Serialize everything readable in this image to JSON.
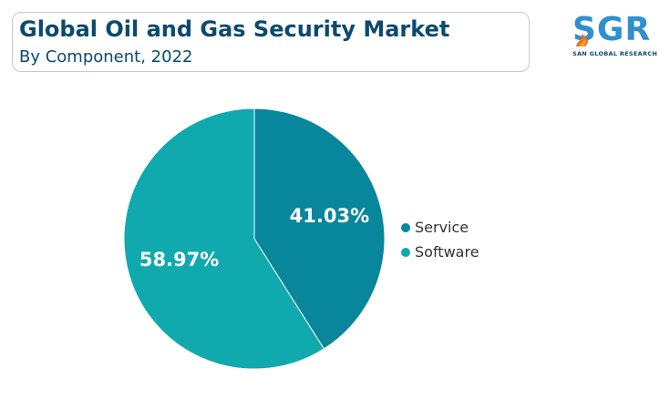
{
  "title": "Global Oil and Gas Security Market",
  "subtitle": "By Component, 2022",
  "logo": {
    "word": "SGR",
    "tagline": "SAN GLOBAL RESEARCH"
  },
  "chart_data": {
    "type": "pie",
    "slices": [
      {
        "label": "Service",
        "value": 41.03,
        "display": "41.03%",
        "color": "#08869c"
      },
      {
        "label": "Software",
        "value": 58.97,
        "display": "58.97%",
        "color": "#10a9ad"
      }
    ],
    "start_angle_deg": 0,
    "direction": "clockwise",
    "legend_position": "right"
  }
}
